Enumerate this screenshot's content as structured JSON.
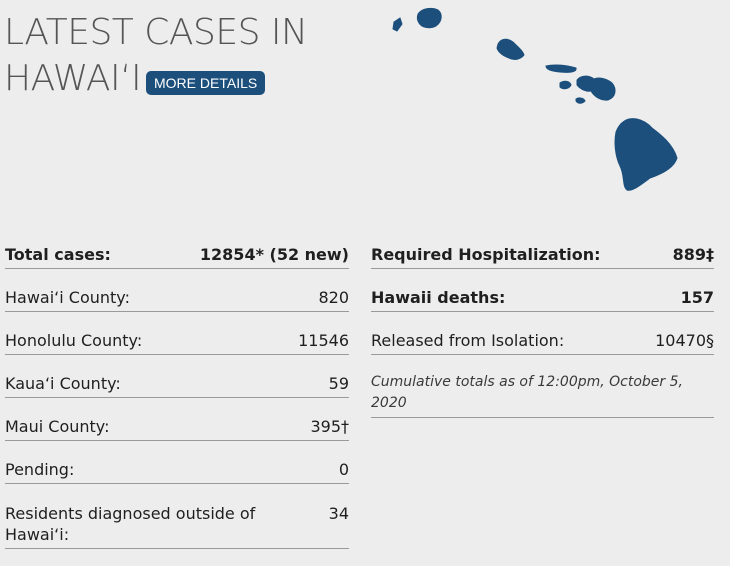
{
  "header": {
    "title_line1": "LATEST CASES IN",
    "title_line2": "HAWAI‘I",
    "more_details_label": "MORE DETAILS"
  },
  "map": {
    "icon": "hawaii-islands-map-icon",
    "color": "#1c4f7c"
  },
  "stats_left": [
    {
      "label": "Total cases:",
      "value": "12854* (52 new)",
      "bold": true
    },
    {
      "label": "Hawai‘i County:",
      "value": "820"
    },
    {
      "label": "Honolulu County:",
      "value": "11546"
    },
    {
      "label": "Kaua‘i County:",
      "value": "59"
    },
    {
      "label": "Maui County:",
      "value": "395†"
    },
    {
      "label": "Pending:",
      "value": "0"
    },
    {
      "label": "Residents diagnosed outside of Hawai‘i:",
      "value": "34"
    }
  ],
  "stats_right": [
    {
      "label": "Required Hospitalization:",
      "value": "889‡",
      "bold": true
    },
    {
      "label": "Hawaii deaths:",
      "value": "157",
      "bold": true
    },
    {
      "label": "Released from Isolation:",
      "value": "10470§"
    }
  ],
  "note": "Cumulative totals as of 12:00pm, October 5, 2020",
  "colors": {
    "accent": "#1c4f7c",
    "background": "#ededed"
  }
}
